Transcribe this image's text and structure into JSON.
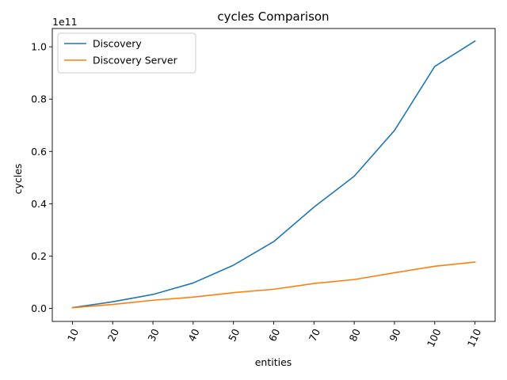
{
  "chart_data": {
    "type": "line",
    "title": "cycles Comparison",
    "xlabel": "entities",
    "ylabel": "cycles",
    "y_offset_label": "1e11",
    "y_scale": 100000000000.0,
    "categories": [
      "10",
      "20",
      "30",
      "40",
      "50",
      "60",
      "70",
      "80",
      "90",
      "100",
      "110"
    ],
    "xlim": [
      5,
      115
    ],
    "ylim": [
      -0.05,
      1.07
    ],
    "yticks": [
      0.0,
      0.2,
      0.4,
      0.6,
      0.8,
      1.0
    ],
    "ytick_labels": [
      "0.0",
      "0.2",
      "0.4",
      "0.6",
      "0.8",
      "1.0"
    ],
    "legend_loc": "upper left",
    "grid": false,
    "series": [
      {
        "name": "Discovery",
        "color": "#1f77b4",
        "x": [
          10,
          20,
          30,
          40,
          50,
          60,
          70,
          80,
          90,
          100,
          110
        ],
        "values": [
          0.003,
          0.025,
          0.053,
          0.097,
          0.165,
          0.255,
          0.387,
          0.505,
          0.68,
          0.925,
          1.022
        ]
      },
      {
        "name": "Discovery Server",
        "color": "#ff7f0e",
        "x": [
          10,
          20,
          30,
          40,
          50,
          60,
          70,
          80,
          90,
          100,
          110
        ],
        "values": [
          0.002,
          0.015,
          0.031,
          0.043,
          0.06,
          0.073,
          0.095,
          0.11,
          0.136,
          0.161,
          0.177
        ]
      }
    ]
  }
}
